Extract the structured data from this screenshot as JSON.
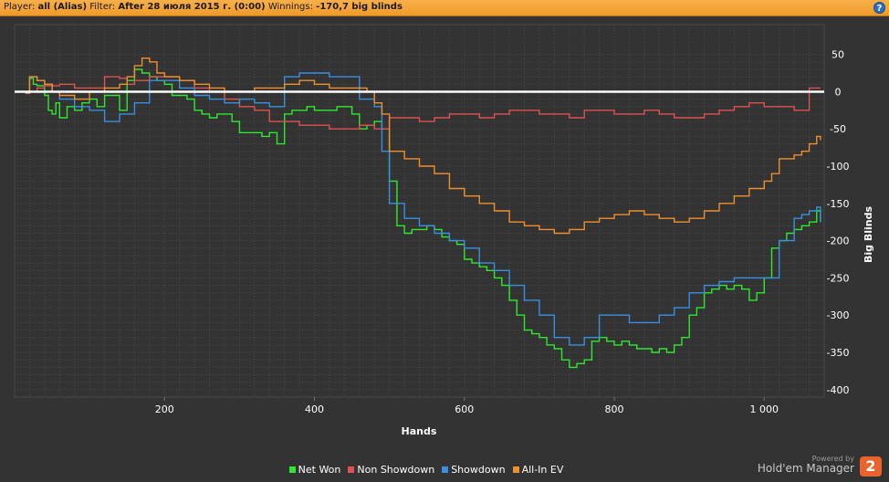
{
  "header": {
    "player_label": "Player:",
    "player_value": "all (Alias)",
    "filter_label": "Filter:",
    "filter_value": "After 28 июля 2015 г. (0:00)",
    "winnings_label": "Winnings:",
    "winnings_value": "-170,7 big blinds",
    "help_icon": "help-icon"
  },
  "brand": {
    "powered_by": "Powered by",
    "name": "Hold'em Manager",
    "logo_text": "2"
  },
  "chart_data": {
    "type": "line",
    "xlabel": "Hands",
    "ylabel": "Big Blinds",
    "xlim": [
      0,
      1080
    ],
    "ylim": [
      -410,
      90
    ],
    "x_ticks": [
      200,
      400,
      600,
      800,
      1000
    ],
    "x_tick_labels": [
      "200",
      "400",
      "600",
      "800",
      "1 000"
    ],
    "y_ticks": [
      50,
      0,
      -50,
      -100,
      -150,
      -200,
      -250,
      -300,
      -350,
      -400
    ],
    "y_tick_labels": [
      "50",
      "0",
      "-50",
      "-100",
      "-150",
      "-200",
      "-250",
      "-300",
      "-350",
      "-400"
    ],
    "grid": true,
    "zero_line": true,
    "legend_position": "bottom",
    "colors": {
      "background": "#333333",
      "grid": "#494949",
      "axis_text": "#ffffff",
      "zero_line": "#ffffff"
    },
    "series": [
      {
        "name": "Net Won",
        "color": "#2ee82e",
        "x": [
          0,
          15,
          20,
          25,
          30,
          40,
          45,
          50,
          55,
          60,
          70,
          80,
          90,
          100,
          110,
          120,
          130,
          140,
          150,
          160,
          170,
          180,
          190,
          200,
          210,
          220,
          230,
          240,
          250,
          260,
          270,
          280,
          290,
          300,
          310,
          320,
          330,
          340,
          350,
          360,
          370,
          380,
          390,
          400,
          410,
          420,
          430,
          440,
          450,
          460,
          470,
          480,
          490,
          500,
          510,
          520,
          530,
          540,
          550,
          560,
          570,
          580,
          590,
          600,
          610,
          620,
          630,
          640,
          650,
          660,
          670,
          680,
          690,
          700,
          710,
          720,
          730,
          740,
          750,
          760,
          770,
          780,
          790,
          800,
          810,
          820,
          830,
          840,
          850,
          860,
          870,
          880,
          890,
          900,
          910,
          920,
          930,
          940,
          950,
          960,
          970,
          980,
          990,
          1000,
          1010,
          1020,
          1030,
          1040,
          1050,
          1060,
          1070,
          1075
        ],
        "values": [
          0,
          -2,
          18,
          10,
          8,
          -5,
          -25,
          -30,
          -15,
          -35,
          -20,
          -25,
          -15,
          -10,
          -20,
          -5,
          -5,
          -25,
          15,
          30,
          25,
          20,
          15,
          10,
          -5,
          -5,
          -10,
          -25,
          -30,
          -35,
          -30,
          -30,
          -40,
          -55,
          -55,
          -55,
          -60,
          -55,
          -70,
          -30,
          -25,
          -25,
          -20,
          -25,
          -25,
          -25,
          -20,
          -20,
          -30,
          -50,
          -45,
          -40,
          -50,
          -120,
          -180,
          -190,
          -185,
          -185,
          -180,
          -185,
          -195,
          -200,
          -205,
          -225,
          -230,
          -235,
          -240,
          -250,
          -260,
          -280,
          -300,
          -320,
          -325,
          -330,
          -340,
          -345,
          -360,
          -370,
          -365,
          -360,
          -335,
          -330,
          -335,
          -340,
          -335,
          -340,
          -345,
          -345,
          -350,
          -345,
          -350,
          -340,
          -330,
          -300,
          -290,
          -270,
          -265,
          -260,
          -265,
          -260,
          -265,
          -280,
          -270,
          -250,
          -210,
          -200,
          -190,
          -185,
          -180,
          -175,
          -160,
          -175
        ]
      },
      {
        "name": "Non Showdown",
        "color": "#e0524f",
        "x": [
          0,
          20,
          30,
          40,
          60,
          80,
          100,
          120,
          140,
          150,
          160,
          180,
          200,
          220,
          240,
          260,
          280,
          300,
          320,
          340,
          360,
          380,
          400,
          420,
          440,
          460,
          480,
          500,
          520,
          540,
          560,
          580,
          600,
          620,
          640,
          660,
          680,
          700,
          720,
          740,
          760,
          780,
          800,
          820,
          840,
          860,
          880,
          900,
          920,
          940,
          960,
          980,
          1000,
          1020,
          1040,
          1050,
          1060,
          1070,
          1075
        ],
        "values": [
          0,
          0,
          5,
          8,
          10,
          5,
          5,
          20,
          18,
          10,
          15,
          20,
          20,
          15,
          5,
          0,
          -10,
          -20,
          -25,
          -40,
          -40,
          -45,
          -45,
          -50,
          -50,
          -45,
          -50,
          -35,
          -35,
          -40,
          -35,
          -30,
          -30,
          -35,
          -30,
          -25,
          -25,
          -30,
          -30,
          -35,
          -25,
          -25,
          -30,
          -30,
          -25,
          -30,
          -35,
          -35,
          -30,
          -25,
          -20,
          -15,
          -20,
          -20,
          -25,
          -25,
          5,
          5,
          5
        ]
      },
      {
        "name": "Showdown",
        "color": "#3a8fe0",
        "x": [
          0,
          15,
          20,
          30,
          40,
          50,
          60,
          80,
          100,
          120,
          140,
          160,
          180,
          200,
          220,
          240,
          260,
          280,
          300,
          320,
          340,
          360,
          380,
          400,
          420,
          440,
          460,
          480,
          490,
          500,
          520,
          540,
          560,
          580,
          600,
          620,
          640,
          660,
          680,
          700,
          720,
          740,
          760,
          780,
          800,
          820,
          840,
          860,
          880,
          900,
          920,
          940,
          960,
          980,
          1000,
          1020,
          1040,
          1050,
          1060,
          1070,
          1075
        ],
        "values": [
          0,
          -2,
          20,
          15,
          10,
          0,
          -10,
          -20,
          -25,
          -40,
          -30,
          -15,
          15,
          15,
          5,
          -5,
          -10,
          -15,
          -10,
          -15,
          -20,
          20,
          25,
          25,
          20,
          20,
          -10,
          -20,
          -80,
          -150,
          -170,
          -180,
          -190,
          -200,
          -210,
          -230,
          -240,
          -260,
          -280,
          -300,
          -330,
          -340,
          -330,
          -300,
          -300,
          -310,
          -310,
          -300,
          -290,
          -270,
          -260,
          -255,
          -250,
          -250,
          -250,
          -200,
          -170,
          -165,
          -160,
          -155,
          -175
        ]
      },
      {
        "name": "All-In EV",
        "color": "#f0902c",
        "x": [
          0,
          15,
          20,
          30,
          40,
          50,
          60,
          80,
          100,
          120,
          140,
          150,
          160,
          170,
          180,
          190,
          200,
          220,
          240,
          260,
          280,
          300,
          320,
          340,
          360,
          380,
          400,
          420,
          440,
          460,
          470,
          480,
          490,
          500,
          520,
          540,
          560,
          580,
          600,
          620,
          640,
          660,
          680,
          700,
          720,
          740,
          760,
          780,
          800,
          820,
          840,
          860,
          880,
          900,
          920,
          940,
          960,
          980,
          1000,
          1010,
          1020,
          1040,
          1050,
          1060,
          1070,
          1075
        ],
        "values": [
          0,
          -2,
          20,
          15,
          10,
          0,
          -5,
          -10,
          0,
          5,
          10,
          20,
          35,
          45,
          40,
          25,
          20,
          15,
          10,
          5,
          0,
          0,
          5,
          5,
          10,
          15,
          10,
          5,
          5,
          5,
          0,
          -15,
          -30,
          -80,
          -90,
          -100,
          -110,
          -130,
          -140,
          -150,
          -160,
          -175,
          -180,
          -185,
          -190,
          -185,
          -175,
          -170,
          -165,
          -160,
          -165,
          -170,
          -175,
          -170,
          -160,
          -150,
          -140,
          -130,
          -120,
          -110,
          -90,
          -85,
          -80,
          -70,
          -60,
          -65
        ]
      }
    ]
  }
}
